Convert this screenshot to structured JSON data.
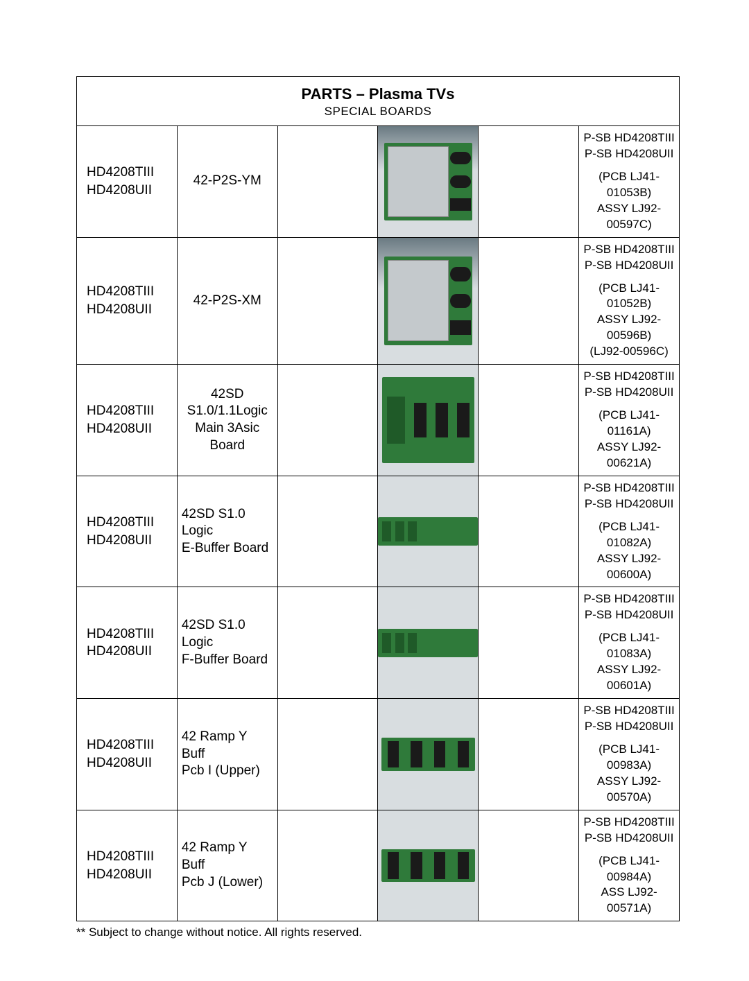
{
  "header": {
    "title": "PARTS – Plasma TVs",
    "subtitle": "SPECIAL BOARDS"
  },
  "colors": {
    "table_bg_light": "#d8dde0",
    "table_bg_dark": "#6a7a82",
    "pcb_green": "#2f7a3a",
    "pcb_green_dark": "#1f5a28",
    "metal_box": "#c4c9cc",
    "chip_black": "#1a1a1a"
  },
  "rows": [
    {
      "models": [
        "HD4208TIII",
        "HD4208UII"
      ],
      "part": "42-P2S-YM",
      "photo_style": "metalbox",
      "desc_top": [
        "P-SB HD4208TIII",
        "P-SB HD4208UII"
      ],
      "desc_bot": [
        "(PCB LJ41-01053B)",
        "ASSY LJ92-00597C)"
      ]
    },
    {
      "models": [
        "HD4208TIII",
        "HD4208UII"
      ],
      "part": "42-P2S-XM",
      "photo_style": "metalbox",
      "desc_top": [
        "P-SB HD4208TIII",
        "P-SB HD4208UII"
      ],
      "desc_bot": [
        "(PCB LJ41-01052B)",
        "ASSY LJ92-00596B)",
        "(LJ92-00596C)"
      ]
    },
    {
      "models": [
        "HD4208TIII",
        "HD4208UII"
      ],
      "part_lines": [
        "42SD",
        "S1.0/1.1Logic",
        "Main 3Asic Board"
      ],
      "photo_style": "bigpcb",
      "desc_top": [
        "P-SB HD4208TIII",
        "P-SB HD4208UII"
      ],
      "desc_bot": [
        "(PCB LJ41-01161A)",
        "ASSY LJ92-00621A)"
      ]
    },
    {
      "models": [
        "HD4208TIII",
        "HD4208UII"
      ],
      "part_lines": [
        "42SD S1.0 Logic",
        "E-Buffer Board"
      ],
      "photo_style": "strip",
      "desc_top": [
        "P-SB HD4208TIII",
        "P-SB HD4208UII"
      ],
      "desc_bot": [
        "(PCB LJ41-01082A)",
        "ASSY LJ92-00600A)"
      ]
    },
    {
      "models": [
        "HD4208TIII",
        "HD4208UII"
      ],
      "part_lines": [
        "42SD S1.0 Logic",
        "F-Buffer Board"
      ],
      "photo_style": "strip",
      "desc_top": [
        "P-SB HD4208TIII",
        "P-SB HD4208UII"
      ],
      "desc_bot": [
        "(PCB LJ41-01083A)",
        "ASSY LJ92-00601A)"
      ]
    },
    {
      "models": [
        "HD4208TIII",
        "HD4208UII"
      ],
      "part_lines": [
        "42 Ramp Y Buff",
        "Pcb I (Upper)"
      ],
      "photo_style": "strip_chips",
      "desc_top": [
        "P-SB HD4208TIII",
        "P-SB HD4208UII"
      ],
      "desc_bot": [
        "(PCB LJ41-00983A)",
        "ASSY LJ92-00570A)"
      ]
    },
    {
      "models": [
        "HD4208TIII",
        "HD4208UII"
      ],
      "part_lines": [
        "42 Ramp Y Buff",
        "Pcb J (Lower)"
      ],
      "photo_style": "strip_chips",
      "desc_top": [
        "P-SB HD4208TIII",
        "P-SB HD4208UII"
      ],
      "desc_bot": [
        "(PCB LJ41-00984A)",
        "ASS LJ92-00571A)"
      ]
    }
  ],
  "footnote": "** Subject to change without notice. All rights reserved."
}
